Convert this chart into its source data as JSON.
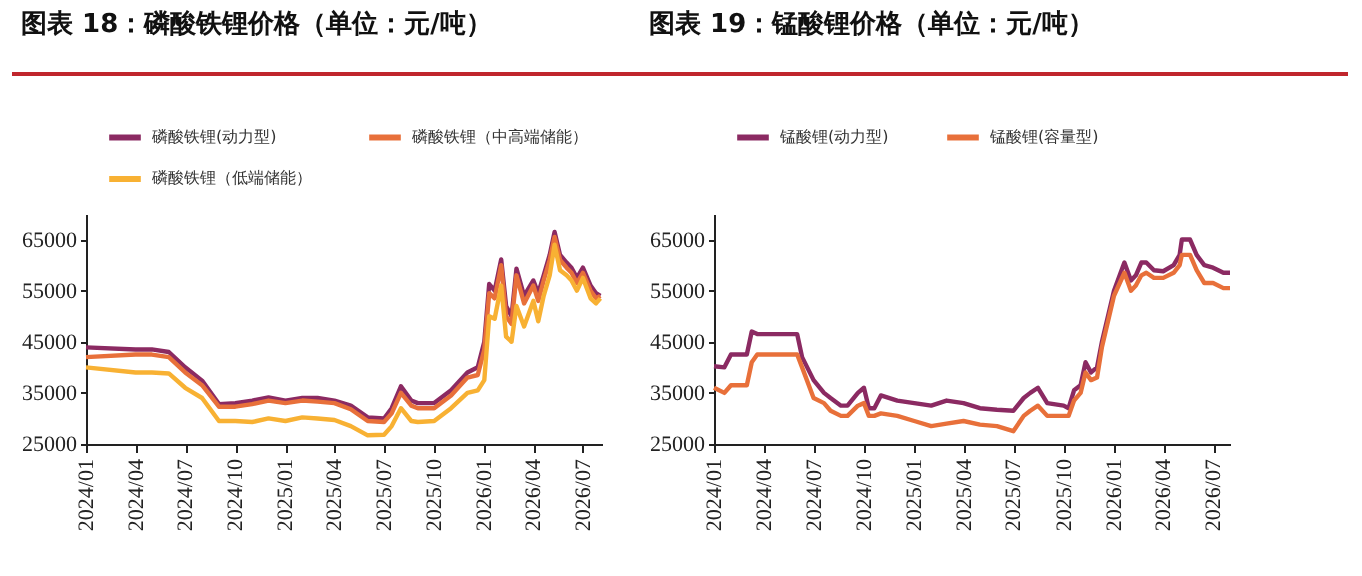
{
  "chart_data": [
    {
      "type": "line",
      "title": "图表 18：磷酸铁锂价格（单位：元/吨）",
      "legend": "top",
      "line_style": "solid",
      "x": [
        "2024-01",
        "2024-04",
        "2024-05",
        "2024-06",
        "2024-07",
        "2024-08",
        "2024-09",
        "2024-10",
        "2024-11",
        "2024-12",
        "2025-01",
        "2025-02",
        "2025-03",
        "2025-04",
        "2025-05",
        "2025-06",
        "2025-07",
        "2025-07-15",
        "2025-08",
        "2025-08-20",
        "2025-09",
        "2025-10",
        "2025-11",
        "2025-12",
        "2025-12-20",
        "2026-01",
        "2026-01-10",
        "2026-01-20",
        "2026-02",
        "2026-02-10",
        "2026-02-20",
        "2026-03",
        "2026-03-15",
        "2026-04",
        "2026-04-10",
        "2026-04-20",
        "2026-05",
        "2026-05-10",
        "2026-05-20",
        "2026-06",
        "2026-06-10",
        "2026-06-20",
        "2026-07",
        "2026-07-15",
        "2026-07-25",
        "2026-08-02"
      ],
      "series": [
        {
          "name": "磷酸铁锂(动力型)",
          "color": "#8b2a62",
          "values": [
            43900,
            43500,
            43500,
            43000,
            40000,
            37400,
            32800,
            33000,
            33500,
            34100,
            33500,
            34000,
            34000,
            33500,
            32500,
            30200,
            30000,
            32000,
            36300,
            33500,
            33000,
            33000,
            35500,
            39000,
            40000,
            45000,
            56300,
            55000,
            61100,
            52000,
            50000,
            59300,
            54000,
            57000,
            54500,
            58000,
            62000,
            66500,
            62000,
            60500,
            59500,
            57500,
            59500,
            56000,
            54500,
            54000
          ]
        },
        {
          "name": "磷酸铁锂（中高端储能）",
          "color": "#e8703a",
          "values": [
            42000,
            42500,
            42500,
            42000,
            39000,
            36500,
            32300,
            32300,
            32800,
            33500,
            33000,
            33500,
            33300,
            33000,
            31800,
            29500,
            29300,
            31000,
            35000,
            32500,
            32000,
            32000,
            34500,
            38000,
            38500,
            43500,
            54500,
            53500,
            60000,
            50000,
            48500,
            58000,
            52500,
            56000,
            53000,
            57000,
            61000,
            65500,
            61000,
            59500,
            58500,
            56500,
            58500,
            55000,
            53500,
            54000
          ]
        },
        {
          "name": "磷酸铁锂（低端储能）",
          "color": "#f8b133",
          "values": [
            40000,
            39000,
            39000,
            38800,
            36000,
            34000,
            29500,
            29500,
            29300,
            30000,
            29500,
            30200,
            30000,
            29700,
            28500,
            26700,
            26800,
            28500,
            32000,
            29500,
            29300,
            29500,
            32000,
            35000,
            35500,
            37500,
            50000,
            49500,
            56000,
            46000,
            45000,
            52000,
            48000,
            53000,
            49000,
            54000,
            58000,
            64000,
            59000,
            58000,
            57000,
            55000,
            57500,
            53500,
            52500,
            53500
          ]
        }
      ],
      "xlim": [
        "2024-01",
        "2026-08-05"
      ],
      "xticks": [
        {
          "value": "2024-01",
          "label": "2024/01"
        },
        {
          "value": "2024-04",
          "label": "2024/04"
        },
        {
          "value": "2024-07",
          "label": "2024/07"
        },
        {
          "value": "2024-10",
          "label": "2024/10"
        },
        {
          "value": "2025-01",
          "label": "2025/01"
        },
        {
          "value": "2025-04",
          "label": "2025/04"
        },
        {
          "value": "2025-07",
          "label": "2025/07"
        },
        {
          "value": "2025-10",
          "label": "2025/10"
        },
        {
          "value": "2026-01",
          "label": "2026/01"
        },
        {
          "value": "2026-04",
          "label": "2026/04"
        },
        {
          "value": "2026-07",
          "label": "2026/07"
        }
      ],
      "ylim": [
        25000,
        70000
      ],
      "yticks": [
        25000,
        35000,
        45000,
        55000,
        65000
      ]
    },
    {
      "type": "line",
      "title": "图表 19：锰酸锂价格（单位：元/吨）",
      "legend": "top",
      "line_style": "solid",
      "x": [
        "2024-01",
        "2024-01-20",
        "2024-02",
        "2024-03",
        "2024-03-10",
        "2024-03-20",
        "2024-06",
        "2024-06-10",
        "2024-07",
        "2024-07-20",
        "2024-08",
        "2024-08-20",
        "2024-09",
        "2024-09-20",
        "2024-10",
        "2024-10-10",
        "2024-10-20",
        "2024-11",
        "2024-12",
        "2025-01",
        "2025-02",
        "2025-03",
        "2025-04",
        "2025-05",
        "2025-06",
        "2025-07",
        "2025-07-20",
        "2025-08",
        "2025-08-15",
        "2025-09",
        "2025-10",
        "2025-10-10",
        "2025-10-20",
        "2025-11",
        "2025-11-10",
        "2025-11-20",
        "2025-12",
        "2025-12-10",
        "2026-01",
        "2026-01-20",
        "2026-02",
        "2026-02-10",
        "2026-02-20",
        "2026-03",
        "2026-03-15",
        "2026-04",
        "2026-04-20",
        "2026-05",
        "2026-05-05",
        "2026-05-20",
        "2026-06",
        "2026-06-15",
        "2026-07",
        "2026-07-20",
        "2026-08"
      ],
      "series": [
        {
          "name": "锰酸锂(动力型)",
          "color": "#8b2a62",
          "values": [
            40200,
            40000,
            42500,
            42500,
            47000,
            46500,
            46500,
            42000,
            37500,
            35000,
            34000,
            32500,
            32500,
            35000,
            36000,
            32000,
            32000,
            34500,
            33500,
            33000,
            32500,
            33500,
            33000,
            32000,
            31700,
            31500,
            34000,
            35000,
            36000,
            33000,
            32500,
            32000,
            35500,
            36500,
            41000,
            39000,
            40000,
            45000,
            55000,
            60500,
            57000,
            58000,
            60500,
            60500,
            59000,
            58800,
            60000,
            62000,
            65000,
            65000,
            62000,
            60000,
            59500,
            58500,
            58500
          ]
        },
        {
          "name": "锰酸锂(容量型)",
          "color": "#e8703a",
          "values": [
            36000,
            35000,
            36500,
            36500,
            41000,
            42500,
            42500,
            40000,
            34000,
            33000,
            31500,
            30500,
            30500,
            32500,
            33000,
            30500,
            30500,
            31000,
            30500,
            29500,
            28500,
            29000,
            29500,
            28800,
            28500,
            27500,
            30500,
            31500,
            32500,
            30500,
            30500,
            30500,
            33500,
            35000,
            39000,
            37500,
            38000,
            44000,
            54000,
            58500,
            55000,
            56000,
            58000,
            58500,
            57500,
            57500,
            58500,
            60000,
            62000,
            62000,
            59000,
            56500,
            56500,
            55500,
            55500
          ]
        }
      ],
      "xlim": [
        "2024-01",
        "2026-08"
      ],
      "xticks": [
        {
          "value": "2024-01",
          "label": "2024/01"
        },
        {
          "value": "2024-04",
          "label": "2024/04"
        },
        {
          "value": "2024-07",
          "label": "2024/07"
        },
        {
          "value": "2024-10",
          "label": "2024/10"
        },
        {
          "value": "2025-01",
          "label": "2025/01"
        },
        {
          "value": "2025-04",
          "label": "2025/04"
        },
        {
          "value": "2025-07",
          "label": "2025/07"
        },
        {
          "value": "2025-10",
          "label": "2025/10"
        },
        {
          "value": "2026-01",
          "label": "2026/01"
        },
        {
          "value": "2026-04",
          "label": "2026/04"
        },
        {
          "value": "2026-07",
          "label": "2026/07"
        }
      ],
      "ylim": [
        25000,
        70000
      ],
      "yticks": [
        25000,
        35000,
        45000,
        55000,
        65000
      ]
    }
  ]
}
